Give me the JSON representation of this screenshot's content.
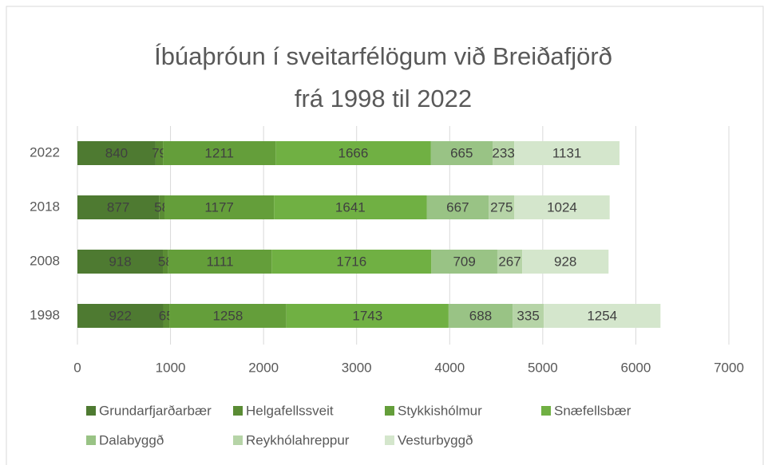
{
  "chart_data": {
    "type": "stacked_barh",
    "title": "Íbúaþróun í sveitarfélögum við Breiðafjörð frá 1998 til 2022",
    "categories": [
      "1998",
      "2008",
      "2018",
      "2022"
    ],
    "series": [
      {
        "name": "Grundarfjarðarbær",
        "color": "#4e7a31",
        "values": [
          922,
          918,
          877,
          840
        ]
      },
      {
        "name": "Helgafellssveit",
        "color": "#5a8c34",
        "values": [
          65,
          58,
          58,
          79
        ]
      },
      {
        "name": "Stykkishólmur",
        "color": "#649e3a",
        "values": [
          1258,
          1111,
          1177,
          1211
        ]
      },
      {
        "name": "Snæfellsbær",
        "color": "#70b043",
        "values": [
          1743,
          1716,
          1641,
          1666
        ]
      },
      {
        "name": "Dalabyggð",
        "color": "#99c385",
        "values": [
          688,
          709,
          667,
          665
        ]
      },
      {
        "name": "Reykhólahreppur",
        "color": "#b6d4a7",
        "values": [
          335,
          267,
          275,
          233
        ]
      },
      {
        "name": "Vesturbyggð",
        "color": "#d4e6cc",
        "values": [
          1254,
          928,
          1024,
          1131
        ]
      }
    ],
    "xlim": [
      0,
      7000
    ],
    "xticks": [
      0,
      1000,
      2000,
      3000,
      4000,
      5000,
      6000,
      7000
    ],
    "grid": true,
    "legend": "bottom"
  }
}
